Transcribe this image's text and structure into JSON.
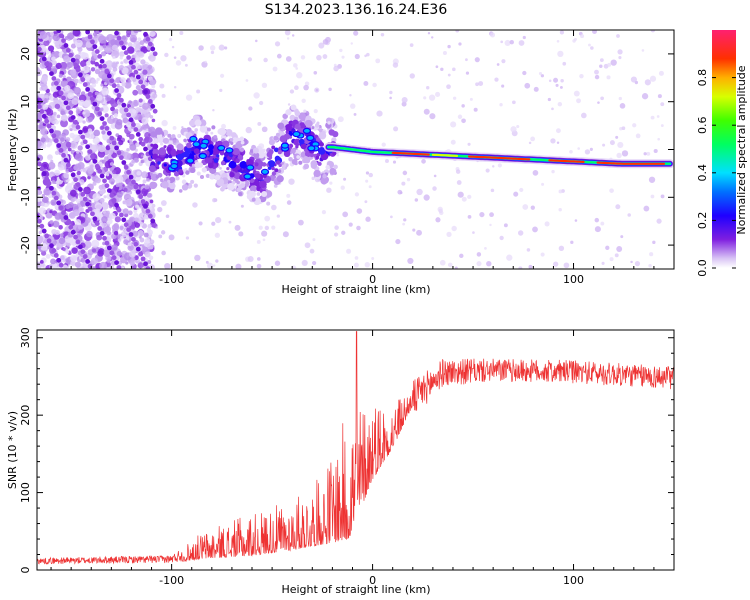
{
  "title": "S134.2023.136.16.24.E36",
  "chart_data": [
    {
      "type": "heatmap",
      "name": "spectrogram",
      "xlabel": "Height of straight line (km)",
      "ylabel": "Frequency (Hz)",
      "xlim": [
        -167,
        150
      ],
      "ylim": [
        -25,
        25
      ],
      "xticks": [
        -100,
        0,
        100
      ],
      "yticks": [
        -20,
        -10,
        0,
        10,
        20
      ],
      "colorbar": {
        "label": "Normalized spectral amplitude",
        "range": [
          0,
          1
        ],
        "ticks": [
          "0.0",
          "0.2",
          "0.4",
          "0.6",
          "0.8"
        ],
        "tick_values": [
          0.0,
          0.2,
          0.4,
          0.6,
          0.8
        ]
      },
      "ridge": [
        {
          "x": -20,
          "y": 0.5
        },
        {
          "x": 0,
          "y": -0.5
        },
        {
          "x": 25,
          "y": -1
        },
        {
          "x": 50,
          "y": -1.5
        },
        {
          "x": 75,
          "y": -2
        },
        {
          "x": 100,
          "y": -2.5
        },
        {
          "x": 125,
          "y": -3
        },
        {
          "x": 148,
          "y": -3
        }
      ]
    },
    {
      "type": "line",
      "name": "snr",
      "xlabel": "Height of straight line (km)",
      "ylabel": "SNR (10 * v/v)",
      "xlim": [
        -167,
        150
      ],
      "ylim": [
        0,
        310
      ],
      "xticks": [
        -100,
        0,
        100
      ],
      "yticks": [
        0,
        100,
        200,
        300
      ],
      "color": "#ee3333",
      "envelope": [
        {
          "x": -167,
          "base": 10,
          "noise": 8
        },
        {
          "x": -100,
          "base": 12,
          "noise": 10
        },
        {
          "x": -85,
          "base": 25,
          "noise": 35
        },
        {
          "x": -60,
          "base": 35,
          "noise": 55
        },
        {
          "x": -40,
          "base": 45,
          "noise": 65
        },
        {
          "x": -25,
          "base": 60,
          "noise": 90
        },
        {
          "x": -12,
          "base": 90,
          "noise": 170
        },
        {
          "x": 0,
          "base": 150,
          "noise": 110
        },
        {
          "x": 10,
          "base": 175,
          "noise": 60
        },
        {
          "x": 20,
          "base": 220,
          "noise": 25
        },
        {
          "x": 35,
          "base": 255,
          "noise": 18
        },
        {
          "x": 60,
          "base": 258,
          "noise": 15
        },
        {
          "x": 100,
          "base": 256,
          "noise": 15
        },
        {
          "x": 150,
          "base": 248,
          "noise": 15
        }
      ],
      "peak": {
        "x": -8,
        "y": 308
      }
    }
  ]
}
